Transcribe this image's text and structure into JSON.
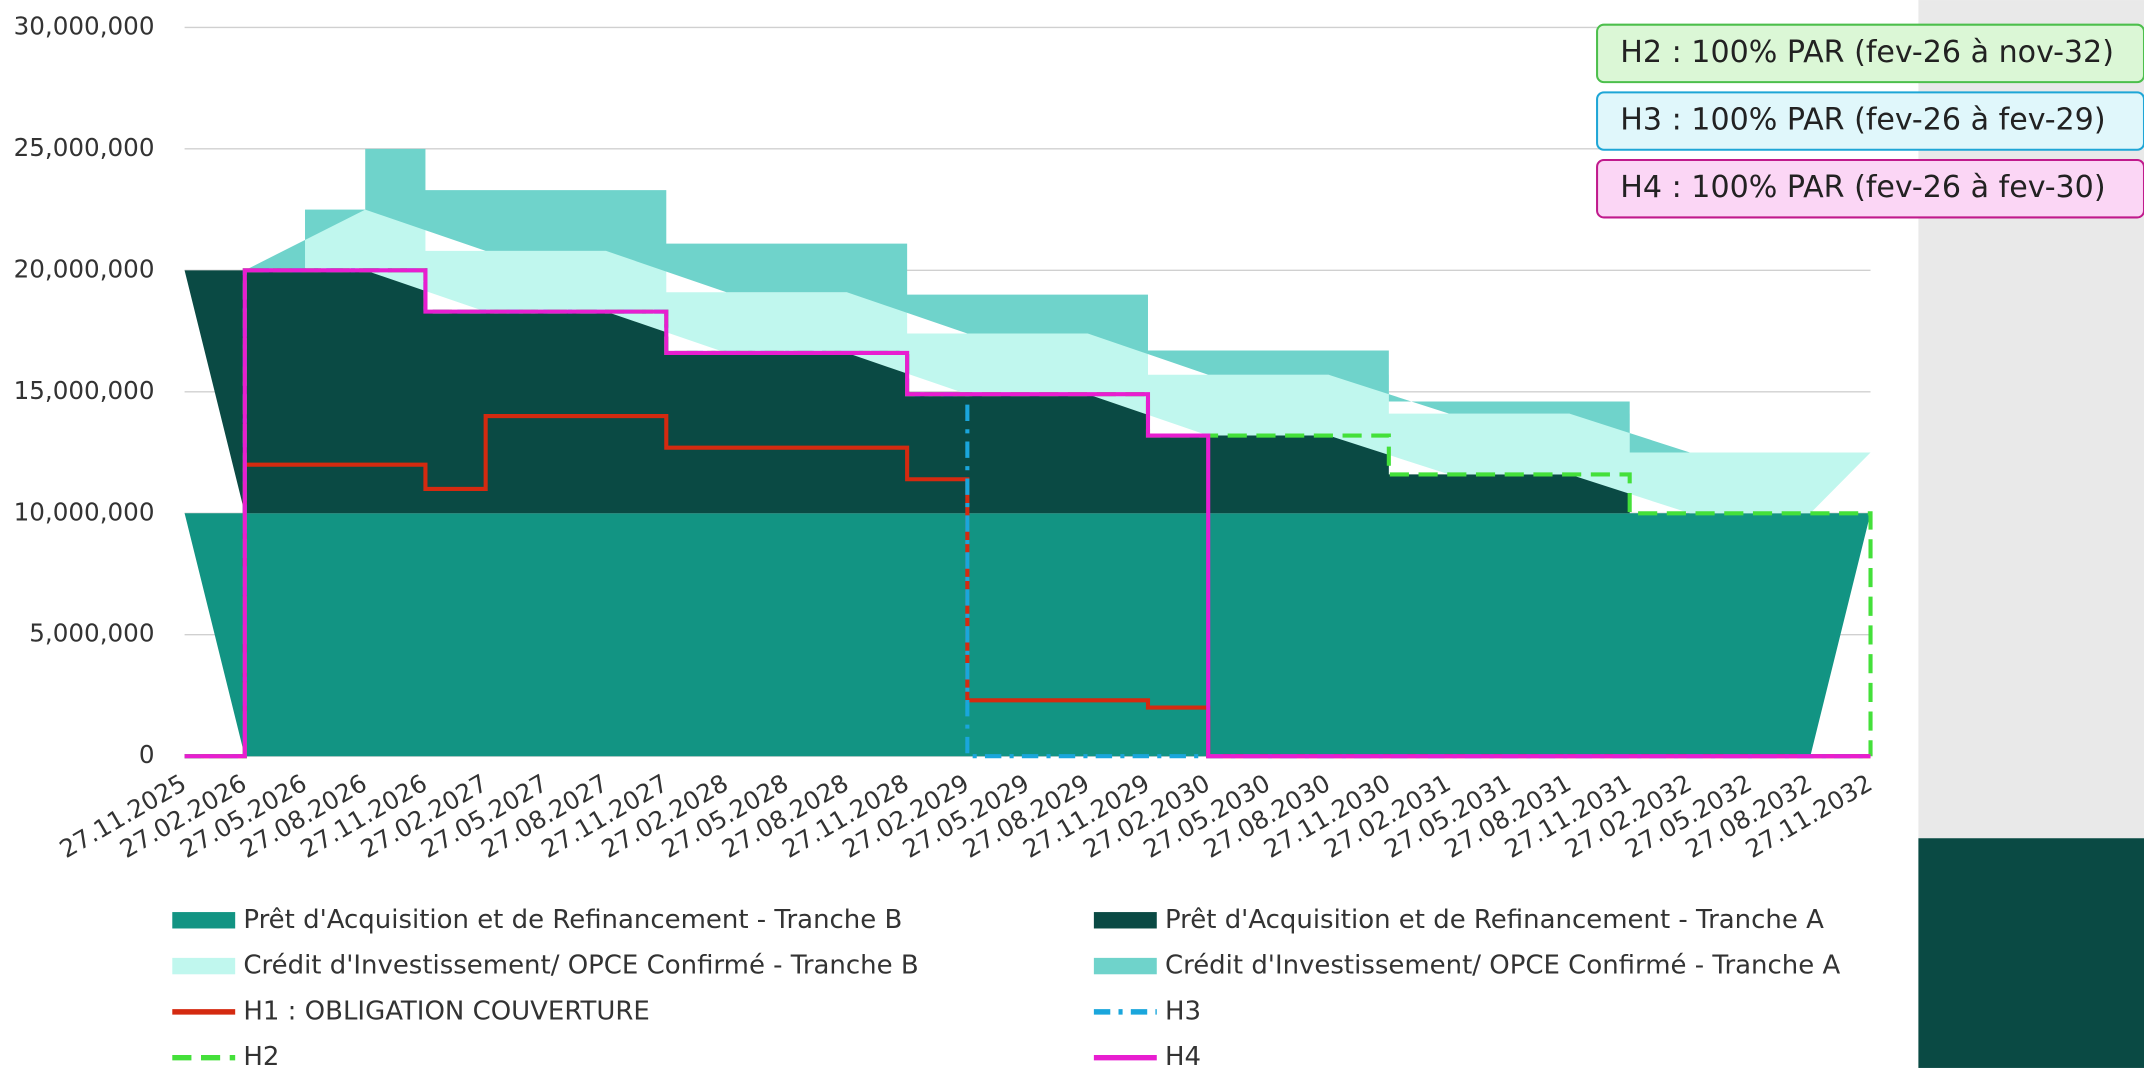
{
  "chart_data": {
    "type": "step-area",
    "categories": [
      "27.11.2025",
      "27.02.2026",
      "27.05.2026",
      "27.08.2026",
      "27.11.2026",
      "27.02.2027",
      "27.05.2027",
      "27.08.2027",
      "27.11.2027",
      "27.02.2028",
      "27.05.2028",
      "27.08.2028",
      "27.11.2028",
      "27.02.2029",
      "27.05.2029",
      "27.08.2029",
      "27.11.2029",
      "27.02.2030",
      "27.05.2030",
      "27.08.2030",
      "27.11.2030",
      "27.02.2031",
      "27.05.2031",
      "27.08.2031",
      "27.11.2031",
      "27.02.2032",
      "27.05.2032",
      "27.08.2032",
      "27.11.2032"
    ],
    "ylim": [
      0,
      30000000
    ],
    "yticks": [
      0,
      {
        "value": 5000000,
        "label": "5,000,000"
      },
      {
        "value": 10000000,
        "label": "10,000,000"
      },
      {
        "value": 15000000,
        "label": "15,000,000"
      },
      {
        "value": 20000000,
        "label": "20,000,000"
      },
      {
        "value": 25000000,
        "label": "25,000,000"
      },
      {
        "value": 30000000,
        "label": "30,000,000"
      }
    ],
    "grid": true,
    "series": [
      {
        "name": "Prêt d'Acquisition et de Refinancement - Tranche B",
        "color": "#129483",
        "kind": "area",
        "values": [
          10000000,
          10000000,
          10000000,
          10000000,
          10000000,
          10000000,
          10000000,
          10000000,
          10000000,
          10000000,
          10000000,
          10000000,
          10000000,
          10000000,
          10000000,
          10000000,
          10000000,
          10000000,
          10000000,
          10000000,
          10000000,
          10000000,
          10000000,
          10000000,
          10000000,
          10000000,
          10000000,
          10000000,
          10000000
        ]
      },
      {
        "name": "Prêt d'Acquisition et de Refinancement - Tranche A",
        "color": "#0a4a44",
        "kind": "area",
        "values": [
          10000000,
          10000000,
          10000000,
          10000000,
          8300000,
          8300000,
          8300000,
          8300000,
          6600000,
          6600000,
          6600000,
          6600000,
          4900000,
          4900000,
          4900000,
          4900000,
          3200000,
          3200000,
          3200000,
          3200000,
          1600000,
          1600000,
          1600000,
          1600000,
          0,
          0,
          0,
          0,
          0
        ]
      },
      {
        "name": "Crédit d'Investissement/ OPCE Confirmé - Tranche B",
        "color": "#c0f7ee",
        "kind": "area",
        "values": [
          0,
          0,
          2500000,
          2500000,
          2500000,
          2500000,
          2500000,
          2500000,
          2500000,
          2500000,
          2500000,
          2500000,
          2500000,
          2500000,
          2500000,
          2500000,
          2500000,
          2500000,
          2500000,
          2500000,
          2500000,
          2500000,
          2500000,
          2500000,
          2500000,
          2500000,
          2500000,
          2500000,
          2500000
        ]
      },
      {
        "name": "Crédit d'Investissement/ OPCE Confirmé - Tranche A",
        "color": "#6fd3cb",
        "kind": "area",
        "values": [
          0,
          0,
          0,
          2500000,
          2500000,
          2500000,
          2500000,
          2500000,
          2000000,
          2000000,
          2000000,
          2000000,
          1600000,
          1600000,
          1600000,
          1600000,
          1000000,
          1000000,
          1000000,
          1000000,
          500000,
          500000,
          500000,
          500000,
          0,
          0,
          0,
          0,
          0
        ]
      },
      {
        "name": "H1 : OBLIGATION COUVERTURE",
        "color": "#d42a10",
        "kind": "line",
        "dash": "solid",
        "values": [
          0,
          12000000,
          12000000,
          12000000,
          11000000,
          14000000,
          14000000,
          14000000,
          12700000,
          12700000,
          12700000,
          12700000,
          11400000,
          2300000,
          2300000,
          2300000,
          2000000,
          0,
          0,
          0,
          0,
          0,
          0,
          0,
          0,
          0,
          0,
          0,
          0
        ]
      },
      {
        "name": "H3",
        "color": "#1aa6dc",
        "kind": "line",
        "dash": "dashdot",
        "values": [
          0,
          20000000,
          20000000,
          20000000,
          18300000,
          18300000,
          18300000,
          18300000,
          16600000,
          16600000,
          16600000,
          16600000,
          14900000,
          0,
          0,
          0,
          0,
          0,
          0,
          0,
          0,
          0,
          0,
          0,
          0,
          0,
          0,
          0,
          0
        ]
      },
      {
        "name": "H2",
        "color": "#44e03a",
        "kind": "line",
        "dash": "dashed",
        "values": [
          0,
          20000000,
          20000000,
          20000000,
          18300000,
          18300000,
          18300000,
          18300000,
          16600000,
          16600000,
          16600000,
          16600000,
          14900000,
          14900000,
          14900000,
          14900000,
          13200000,
          13200000,
          13200000,
          13200000,
          11600000,
          11600000,
          11600000,
          11600000,
          10000000,
          10000000,
          10000000,
          10000000,
          0
        ]
      },
      {
        "name": "H4",
        "color": "#e81ed0",
        "kind": "line",
        "dash": "solid",
        "values": [
          0,
          20000000,
          20000000,
          20000000,
          18300000,
          18300000,
          18300000,
          18300000,
          16600000,
          16600000,
          16600000,
          16600000,
          14900000,
          14900000,
          14900000,
          14900000,
          13200000,
          0,
          0,
          0,
          0,
          0,
          0,
          0,
          0,
          0,
          0,
          0,
          0
        ]
      }
    ],
    "annotations": [
      {
        "text": "H2 : 100% PAR (fev-26 à nov-32)",
        "fill": "#dbf7d6",
        "stroke": "#4cbf4c"
      },
      {
        "text": "H3 : 100% PAR (fev-26 à fev-29)",
        "fill": "#e0f7fb",
        "stroke": "#1ea6d6"
      },
      {
        "text": "H4 : 100% PAR (fev-26 à fev-30)",
        "fill": "#fbd6f5",
        "stroke": "#c01a8c"
      }
    ]
  }
}
